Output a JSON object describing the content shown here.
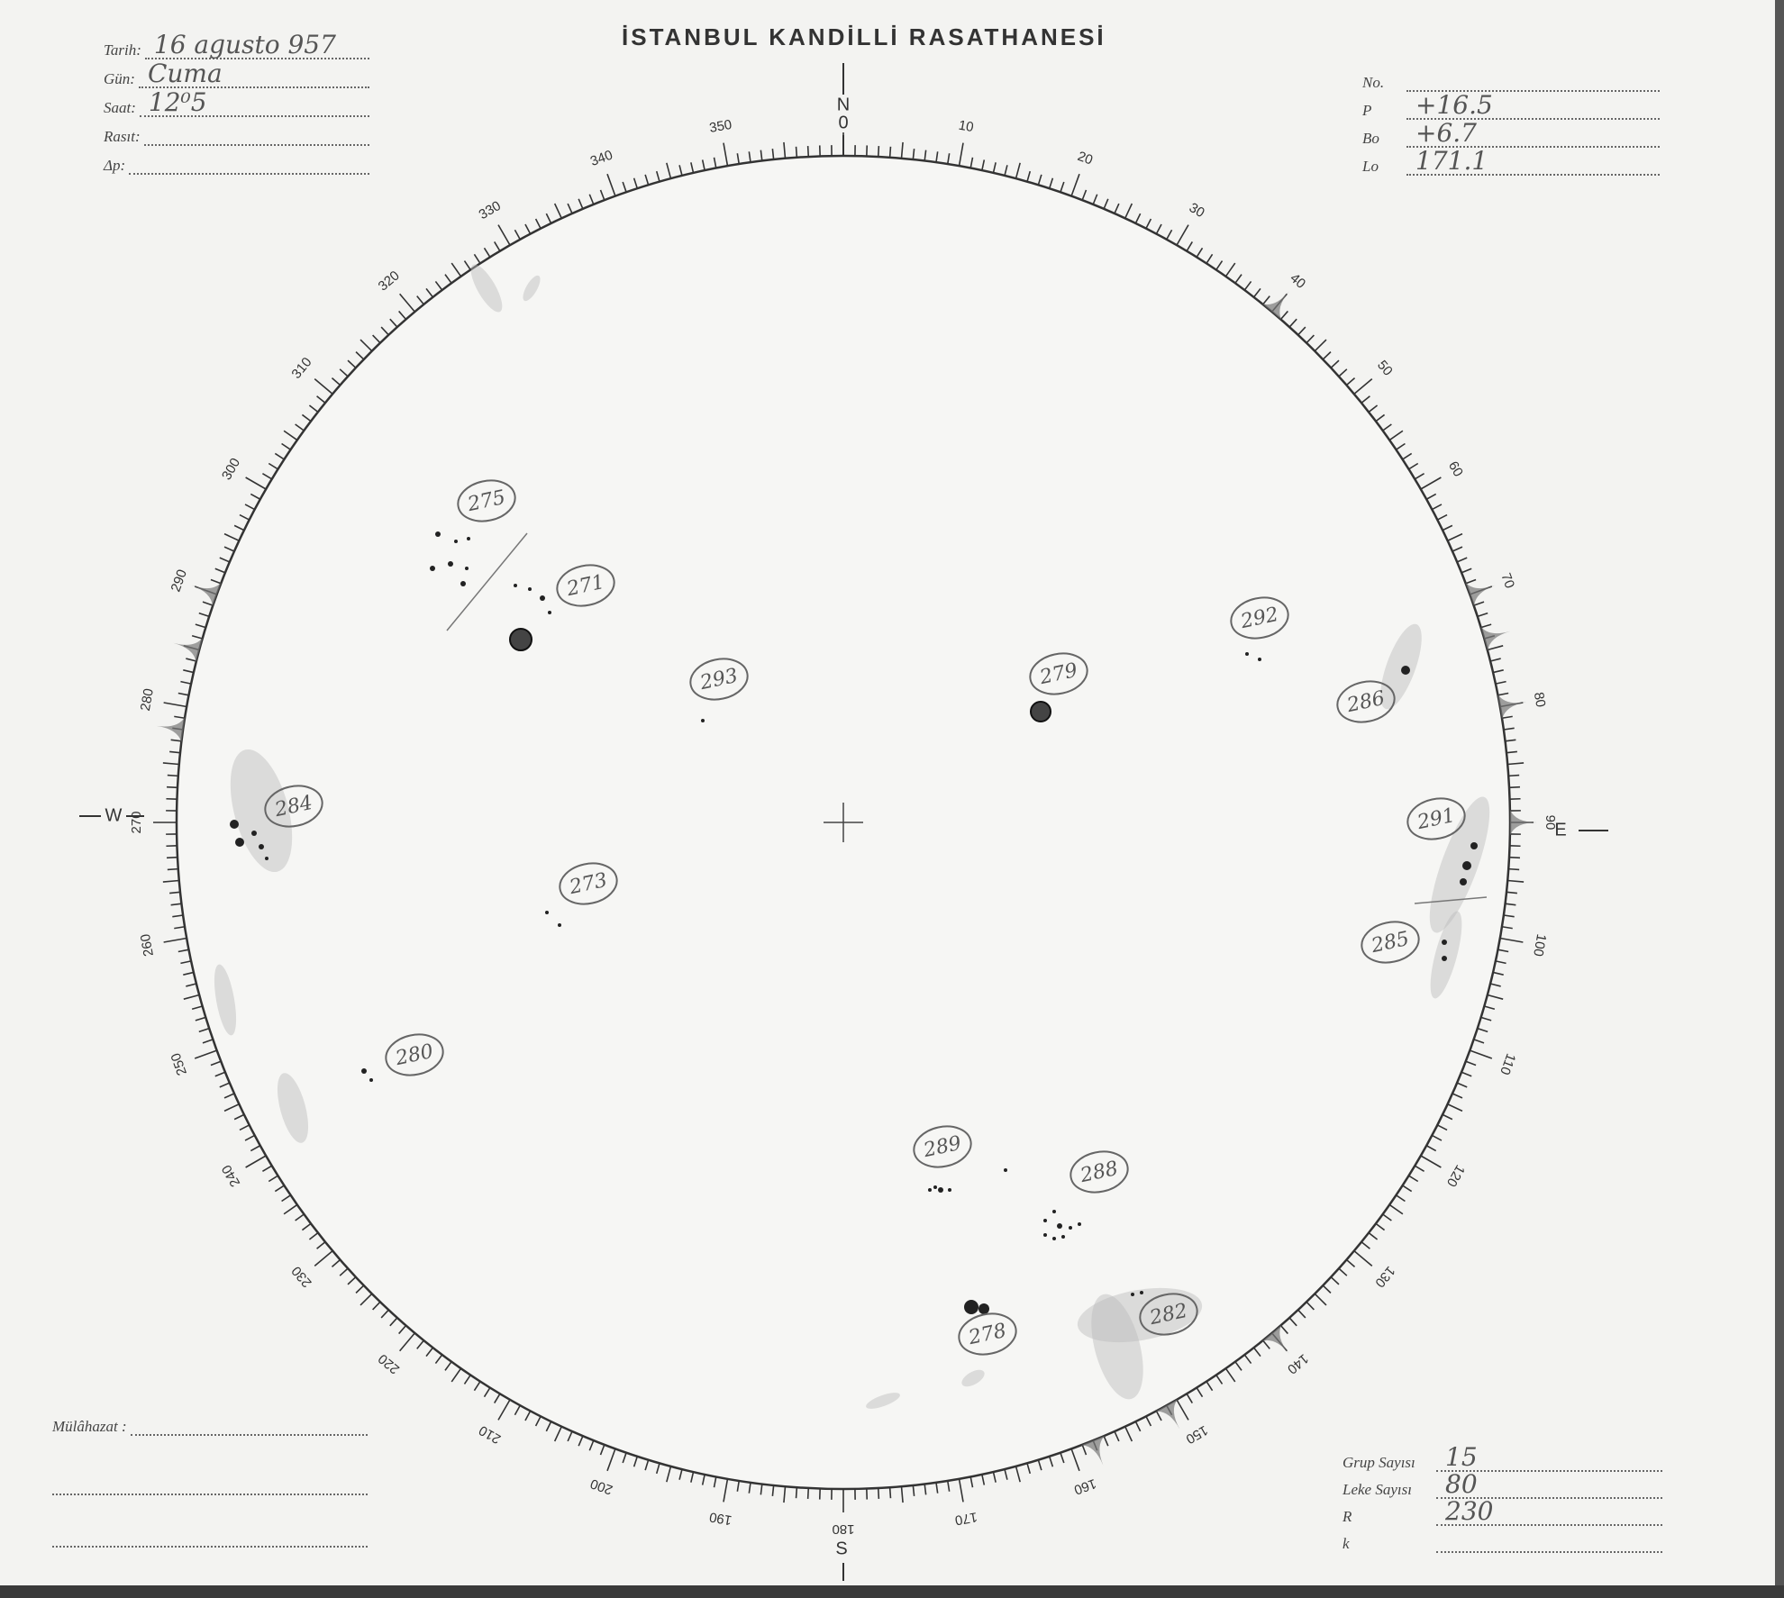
{
  "header": {
    "title": "İSTANBUL KANDİLLİ RASATHANESİ"
  },
  "left_fields": [
    {
      "label": "Tarih:",
      "value": "16 agusto 957"
    },
    {
      "label": "Gün:",
      "value": "Cuma"
    },
    {
      "label": "Saat:",
      "value": "12⁰5"
    },
    {
      "label": "Rasıt:",
      "value": ""
    },
    {
      "label": "Δp:",
      "value": ""
    }
  ],
  "right_fields": [
    {
      "label": "No.",
      "value": ""
    },
    {
      "label": "P",
      "value": "+16.5"
    },
    {
      "label": "Bo",
      "value": "+6.7"
    },
    {
      "label": "Lo",
      "value": "171.1"
    }
  ],
  "bottom_right_fields": [
    {
      "label": "Grup Sayısı",
      "value": "15"
    },
    {
      "label": "Leke Sayısı",
      "value": "80"
    },
    {
      "label": "R",
      "value": "230"
    },
    {
      "label": "k",
      "value": ""
    }
  ],
  "remarks": {
    "label": "Mülâhazat :",
    "value": ""
  },
  "compass": {
    "north": "N",
    "north_zero": "0",
    "east": "E",
    "south": "S",
    "west": "W"
  },
  "scale": {
    "labels": [
      "10",
      "20",
      "30",
      "40",
      "50",
      "60",
      "70",
      "80",
      "90",
      "100",
      "110",
      "120",
      "130",
      "140",
      "150",
      "160",
      "170",
      "180",
      "190",
      "200",
      "210",
      "220",
      "230",
      "240",
      "250",
      "260",
      "270",
      "280",
      "290",
      "300",
      "310",
      "320",
      "330",
      "340",
      "350"
    ]
  },
  "groups": [
    "275",
    "271",
    "293",
    "279",
    "292",
    "286",
    "284",
    "291",
    "273",
    "285",
    "280",
    "289",
    "288",
    "278",
    "282"
  ],
  "colors": {
    "ink": "#333333",
    "pencil": "#888888",
    "paper": "#f3f3f1"
  }
}
